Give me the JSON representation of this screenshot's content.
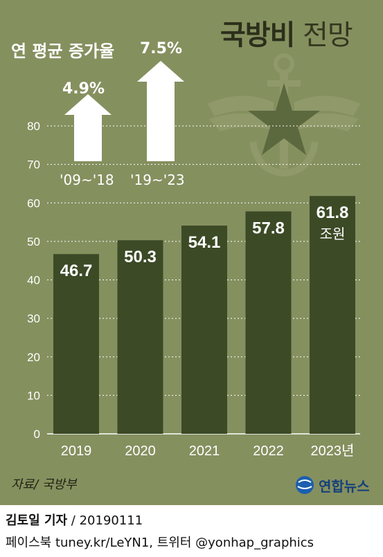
{
  "title_bold": "국방비",
  "title_light": "전망",
  "growth": {
    "title": "연 평균 증가율",
    "items": [
      {
        "value": "4.9%",
        "period": "'09~'18"
      },
      {
        "value": "7.5%",
        "period": "'19~'23"
      }
    ]
  },
  "chart_data": {
    "type": "bar",
    "categories": [
      "2019",
      "2020",
      "2021",
      "2022",
      "2023년"
    ],
    "values": [
      46.7,
      50.3,
      54.1,
      57.8,
      61.8
    ],
    "value_labels": [
      "46.7",
      "50.3",
      "54.1",
      "57.8",
      "61.8"
    ],
    "unit_label": "조원",
    "yticks": [
      0,
      10,
      20,
      30,
      40,
      50,
      60,
      70,
      80
    ],
    "ylim": [
      0,
      80
    ],
    "grid": true,
    "colors": {
      "background": "#85905f",
      "bar": "#3c4a26",
      "grid": "#ffffff",
      "text": "#ffffff"
    }
  },
  "footer": {
    "source": "자료/ 국방부",
    "logo_text": "연합뉴스",
    "reporter": "김토일 기자",
    "date": " / 20190111",
    "social": "페이스북 tuney.kr/LeYN1, 트위터 @yonhap_graphics"
  }
}
